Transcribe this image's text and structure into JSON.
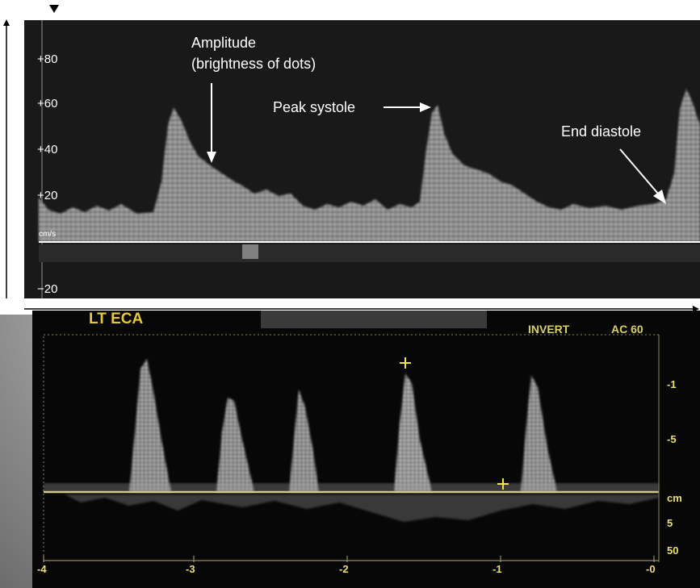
{
  "top_panel": {
    "scale_labels": [
      "+80",
      "+60",
      "+40",
      "+20",
      "−20"
    ],
    "unit": "cm/s",
    "annotations": {
      "amplitude_line1": "Amplitude",
      "amplitude_line2": "(brightness of dots)",
      "peak_systole": "Peak systole",
      "end_diastole": "End diastole"
    },
    "colors": {
      "screen": "#191919",
      "trace": "#d8d8d8",
      "baseline": "#ffffff"
    }
  },
  "bottom_panel": {
    "title": "LT ECA",
    "status": "INVERT",
    "ac_label": "AC 60",
    "x_ticks": [
      "-4",
      "-3",
      "-2",
      "-1",
      "-0"
    ],
    "right_ticks": [
      "-1",
      "-5",
      "cm",
      "5",
      "50"
    ],
    "colors": {
      "label": "#e8c63a",
      "baseline": "#cfc98a",
      "cursor": "#f0e63a"
    }
  }
}
